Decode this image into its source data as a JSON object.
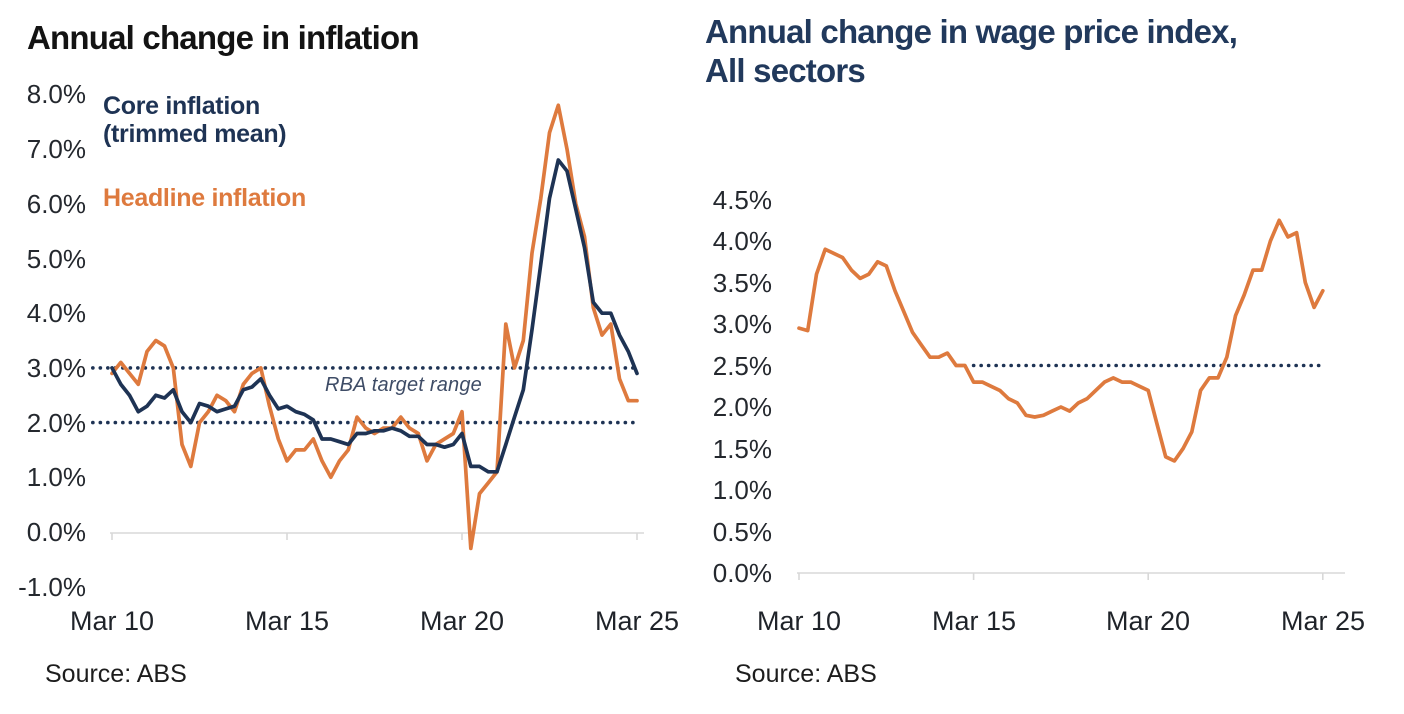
{
  "palette": {
    "navy": "#1e3354",
    "orange": "#de7a3e",
    "axis_gray": "#d8d8d8",
    "annotation_gray_blue": "#3e4c66",
    "left_title_black": "#131313",
    "right_title_navy": "#21395c"
  },
  "chart_data": [
    {
      "type": "line",
      "title": "Annual change in inflation",
      "source": "Source: ABS",
      "legend": {
        "core_line1": "Core inflation",
        "core_line2": "(trimmed mean)",
        "headline_label": "Headline inflation"
      },
      "annotation": "RBA target range",
      "x_axis": {
        "tick_labels": [
          "Mar 10",
          "Mar 15",
          "Mar 20",
          "Mar 25"
        ],
        "tick_quarters": [
          0,
          20,
          40,
          60
        ],
        "frequency": "quarterly",
        "range": "Mar 2010 to Mar 2025"
      },
      "y_axis": {
        "tick_labels": [
          "8.0%",
          "7.0%",
          "6.0%",
          "5.0%",
          "4.0%",
          "3.0%",
          "2.0%",
          "1.0%",
          "0.0%",
          "-1.0%"
        ],
        "tick_values": [
          8,
          7,
          6,
          5,
          4,
          3,
          2,
          1,
          0,
          -1
        ],
        "ylim": [
          -1,
          8
        ]
      },
      "reference_lines": [
        {
          "label": "RBA target range upper",
          "value": 3.0,
          "from_q": -2.2,
          "to_q": 60.1,
          "color": "#1e3354"
        },
        {
          "label": "RBA target range lower",
          "value": 2.0,
          "from_q": -2.2,
          "to_q": 60.1,
          "color": "#1e3354"
        }
      ],
      "series": [
        {
          "name": "Core inflation (trimmed mean)",
          "color": "#1e3354",
          "values": [
            3.0,
            2.7,
            2.5,
            2.2,
            2.3,
            2.5,
            2.45,
            2.6,
            2.2,
            2.0,
            2.35,
            2.3,
            2.2,
            2.25,
            2.3,
            2.6,
            2.65,
            2.8,
            2.5,
            2.25,
            2.3,
            2.2,
            2.15,
            2.05,
            1.7,
            1.7,
            1.65,
            1.6,
            1.8,
            1.8,
            1.85,
            1.85,
            1.9,
            1.85,
            1.75,
            1.75,
            1.6,
            1.6,
            1.55,
            1.6,
            1.8,
            1.2,
            1.2,
            1.1,
            1.1,
            1.6,
            2.1,
            2.6,
            3.7,
            4.9,
            6.1,
            6.8,
            6.6,
            5.9,
            5.2,
            4.2,
            4.0,
            4.0,
            3.6,
            3.3,
            2.9
          ]
        },
        {
          "name": "Headline inflation",
          "color": "#de7a3e",
          "values": [
            2.9,
            3.1,
            2.9,
            2.7,
            3.3,
            3.5,
            3.4,
            3.0,
            1.6,
            1.2,
            2.0,
            2.2,
            2.5,
            2.4,
            2.2,
            2.7,
            2.9,
            3.0,
            2.3,
            1.7,
            1.3,
            1.5,
            1.5,
            1.7,
            1.3,
            1.0,
            1.3,
            1.5,
            2.1,
            1.9,
            1.8,
            1.9,
            1.9,
            2.1,
            1.9,
            1.8,
            1.3,
            1.6,
            1.7,
            1.8,
            2.2,
            -0.3,
            0.7,
            0.9,
            1.1,
            3.8,
            3.0,
            3.5,
            5.1,
            6.1,
            7.3,
            7.8,
            7.0,
            6.0,
            5.4,
            4.1,
            3.6,
            3.8,
            2.8,
            2.4,
            2.4
          ]
        }
      ]
    },
    {
      "type": "line",
      "title": "Annual change in wage price index, All sectors",
      "source": "Source: ABS",
      "x_axis": {
        "tick_labels": [
          "Mar 10",
          "Mar 15",
          "Mar 20",
          "Mar 25"
        ],
        "tick_quarters": [
          0,
          20,
          40,
          60
        ],
        "frequency": "quarterly",
        "range": "Mar 2010 to Mar 2025"
      },
      "y_axis": {
        "tick_labels": [
          "4.5%",
          "4.0%",
          "3.5%",
          "3.0%",
          "2.5%",
          "2.0%",
          "1.5%",
          "1.0%",
          "0.5%",
          "0.0%"
        ],
        "tick_values": [
          4.5,
          4,
          3.5,
          3,
          2.5,
          2,
          1.5,
          1,
          0.5,
          0
        ],
        "ylim": [
          0,
          4.5
        ]
      },
      "reference_lines": [
        {
          "label": "2.5% reference",
          "value": 2.5,
          "from_q": 20,
          "to_q": 59.6,
          "color": "#1e3354"
        }
      ],
      "series": [
        {
          "name": "Wage price index, All sectors",
          "color": "#de7a3e",
          "values": [
            2.95,
            2.92,
            3.6,
            3.9,
            3.85,
            3.8,
            3.65,
            3.55,
            3.6,
            3.75,
            3.7,
            3.4,
            3.15,
            2.9,
            2.75,
            2.6,
            2.6,
            2.65,
            2.5,
            2.5,
            2.3,
            2.3,
            2.25,
            2.2,
            2.1,
            2.05,
            1.9,
            1.88,
            1.9,
            1.95,
            2.0,
            1.95,
            2.05,
            2.1,
            2.2,
            2.3,
            2.35,
            2.3,
            2.3,
            2.25,
            2.2,
            1.8,
            1.4,
            1.35,
            1.5,
            1.7,
            2.2,
            2.35,
            2.35,
            2.6,
            3.1,
            3.35,
            3.65,
            3.65,
            4.0,
            4.25,
            4.05,
            4.1,
            3.5,
            3.2,
            3.4
          ]
        }
      ]
    }
  ]
}
